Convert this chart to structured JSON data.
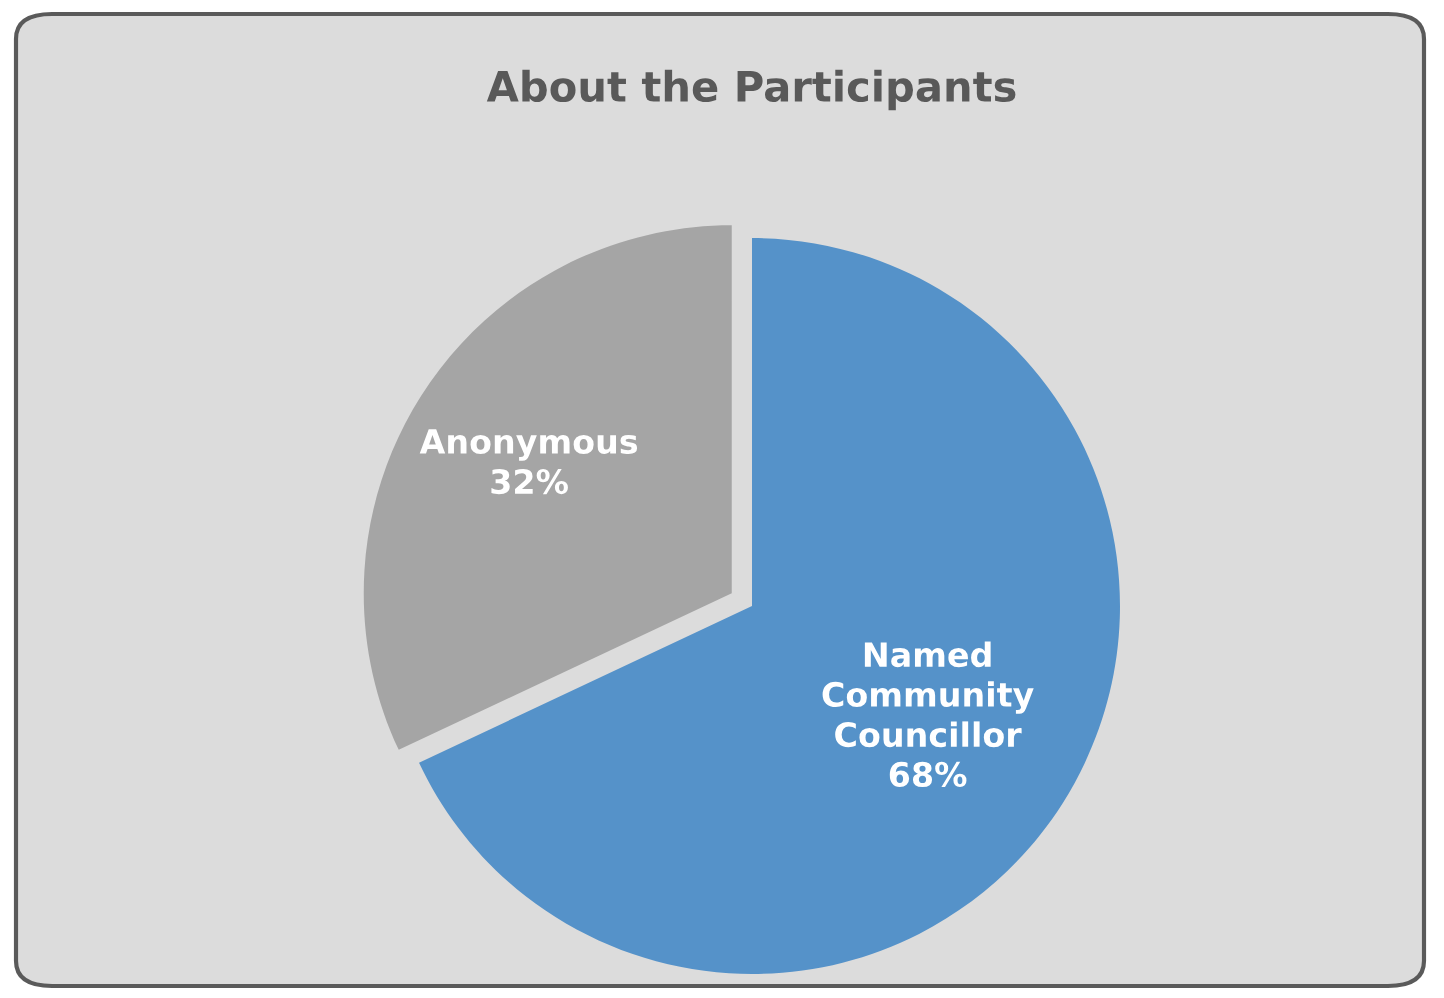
{
  "chart_data": {
    "type": "pie",
    "title": "About the Participants",
    "categories": [
      "Named Community Councillor",
      "Anonymous"
    ],
    "values": [
      68,
      32
    ],
    "colors": [
      "#5592c9",
      "#a5a5a5"
    ],
    "value_labels": [
      "68%",
      "32%"
    ]
  }
}
